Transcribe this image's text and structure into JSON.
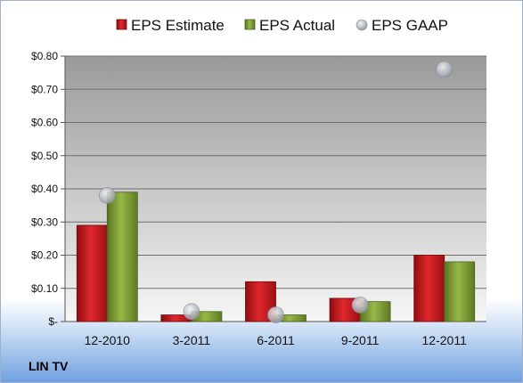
{
  "company": "LIN TV",
  "colors": {
    "estimate": "#c0161b",
    "actual": "#7d9a2e",
    "gaap": "#b8bcc4",
    "plot_bg_top": "#9a9a9a",
    "plot_bg_bottom": "#f4f4f4"
  },
  "chart_data": {
    "type": "bar",
    "categories": [
      "12-2010",
      "3-2011",
      "6-2011",
      "9-2011",
      "12-2011"
    ],
    "series": [
      {
        "name": "EPS Estimate",
        "kind": "bar",
        "values": [
          0.29,
          0.02,
          0.12,
          0.07,
          0.2
        ]
      },
      {
        "name": "EPS Actual",
        "kind": "bar",
        "values": [
          0.39,
          0.03,
          0.02,
          0.06,
          0.18
        ]
      },
      {
        "name": "EPS GAAP",
        "kind": "scatter",
        "values": [
          0.38,
          0.03,
          0.02,
          0.05,
          0.76
        ]
      }
    ],
    "ylim": [
      0,
      0.8
    ],
    "yticks": [
      0,
      0.1,
      0.2,
      0.3,
      0.4,
      0.5,
      0.6,
      0.7,
      0.8
    ],
    "ytick_labels": [
      "$-",
      "$0.10",
      "$0.20",
      "$0.30",
      "$0.40",
      "$0.50",
      "$0.60",
      "$0.70",
      "$0.80"
    ],
    "legend": [
      "EPS Estimate",
      "EPS Actual",
      "EPS GAAP"
    ],
    "legend_position": "top",
    "grid": true
  }
}
